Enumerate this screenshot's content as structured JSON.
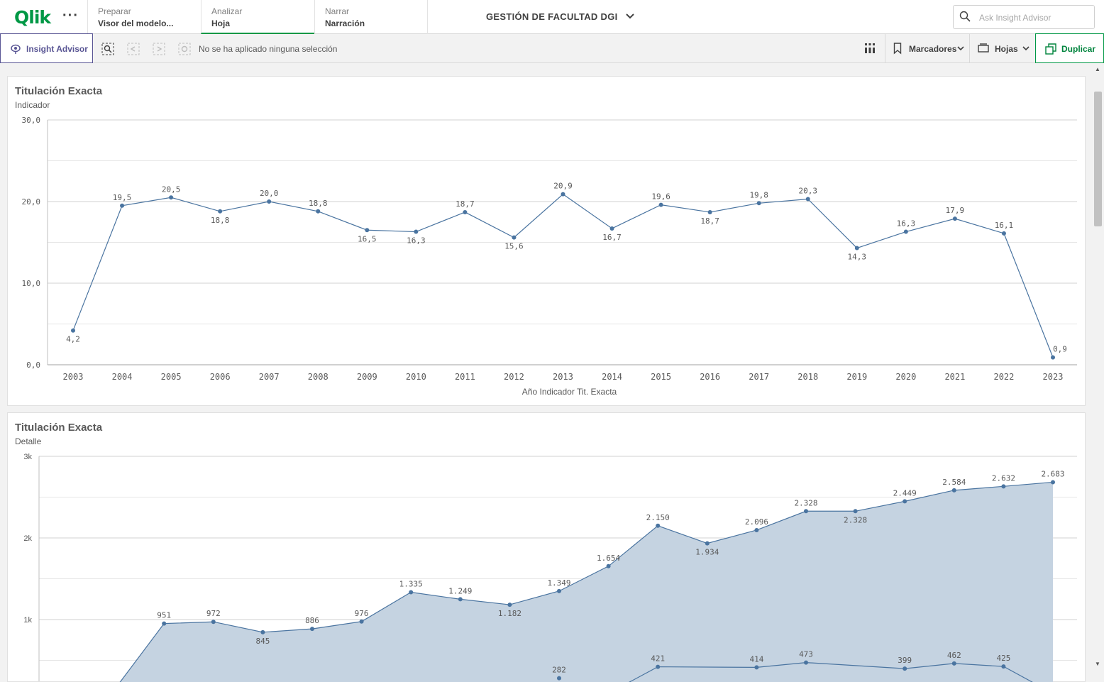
{
  "header": {
    "logo_text": "Qlik",
    "more_label": "···",
    "tabs": [
      {
        "sub": "Preparar",
        "main": "Visor del modelo..."
      },
      {
        "sub": "Analizar",
        "main": "Hoja"
      },
      {
        "sub": "Narrar",
        "main": "Narración"
      }
    ],
    "app_title": "GESTIÓN DE FACULTAD DGI",
    "search_placeholder": "Ask Insight Advisor"
  },
  "toolbar": {
    "insight_advisor": "Insight Advisor",
    "selection_status": "No se ha aplicado ninguna selección",
    "bookmarks": "Marcadores",
    "sheets": "Hojas",
    "duplicate": "Duplicar"
  },
  "colors": {
    "accent_green": "#009845",
    "series_blue": "#4a74a0",
    "area_fill": "#c5d3e1",
    "insight_purple": "#595594"
  },
  "chart1": {
    "title": "Titulación Exacta",
    "subtitle": "Indicador",
    "chart_data": {
      "type": "line",
      "xlabel": "Año Indicador Tit. Exacta",
      "ylabel": "",
      "ylim": [
        0,
        30
      ],
      "yticks": [
        "0,0",
        "10,0",
        "20,0",
        "30,0"
      ],
      "grid": true,
      "categories": [
        "2003",
        "2004",
        "2005",
        "2006",
        "2007",
        "2008",
        "2009",
        "2010",
        "2011",
        "2012",
        "2013",
        "2014",
        "2015",
        "2016",
        "2017",
        "2018",
        "2019",
        "2020",
        "2021",
        "2022",
        "2023"
      ],
      "values": [
        4.2,
        19.5,
        20.5,
        18.8,
        20.0,
        18.8,
        16.5,
        16.3,
        18.7,
        15.6,
        20.9,
        16.7,
        19.6,
        18.7,
        19.8,
        20.3,
        14.3,
        16.3,
        17.9,
        16.1,
        0.9
      ],
      "labels": [
        "4,2",
        "19,5",
        "20,5",
        "18,8",
        "20,0",
        "18,8",
        "16,5",
        "16,3",
        "18,7",
        "15,6",
        "20,9",
        "16,7",
        "19,6",
        "18,7",
        "19,8",
        "20,3",
        "14,3",
        "16,3",
        "17,9",
        "16,1",
        "0,9"
      ]
    }
  },
  "chart2": {
    "title": "Titulación Exacta",
    "subtitle": "Detalle",
    "chart_data": {
      "type": "area",
      "ylim": [
        0,
        3000
      ],
      "yticks": [
        "1k",
        "2k",
        "3k"
      ],
      "grid": true,
      "series": [
        {
          "values": [
            null,
            null,
            951,
            972,
            845,
            886,
            976,
            1335,
            1249,
            1182,
            1349,
            1654,
            2150,
            1934,
            2096,
            2328,
            2328,
            2449,
            2584,
            2632,
            2683
          ],
          "labels": [
            "",
            "",
            "951",
            "972",
            "845",
            "886",
            "976",
            "1.335",
            "1.249",
            "1.182",
            "1.349",
            "1.654",
            "2.150",
            "1.934",
            "2.096",
            "2.328",
            "2.328",
            "2.449",
            "2.584",
            "2.632",
            "2.683"
          ]
        },
        {
          "values": [
            null,
            null,
            null,
            null,
            null,
            null,
            null,
            null,
            null,
            null,
            282,
            null,
            421,
            null,
            414,
            473,
            null,
            399,
            462,
            425,
            null
          ],
          "labels": [
            "",
            "",
            "",
            "",
            "",
            "",
            "",
            "",
            "",
            "",
            "282",
            "",
            "421",
            "",
            "414",
            "473",
            "",
            "399",
            "462",
            "425",
            ""
          ]
        }
      ]
    }
  }
}
